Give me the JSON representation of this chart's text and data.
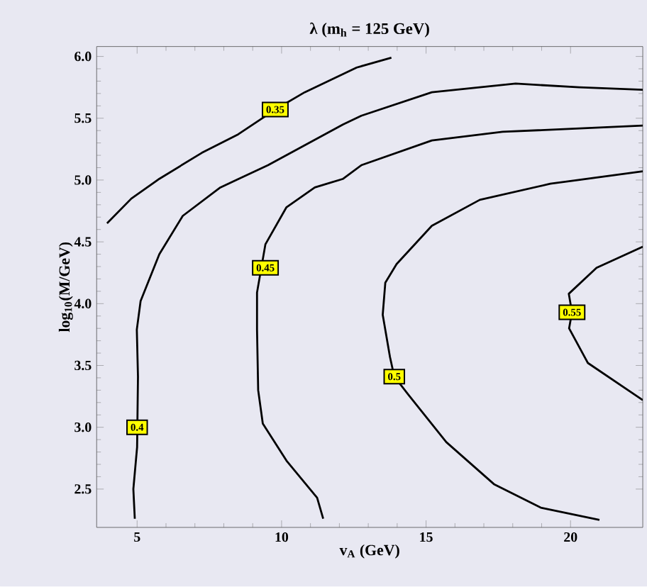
{
  "chart_data": {
    "type": "line",
    "title": "λ (m$_{h}$ = 125 GeV)",
    "xlabel": "v$_{A}$ (GeV)",
    "ylabel": "log$_{10}$(M/GeV)",
    "xlim": [
      3.6,
      22.5
    ],
    "ylim": [
      2.19,
      6.08
    ],
    "xticks": [
      5,
      10,
      15,
      20
    ],
    "yticks": [
      2.5,
      {
        "value": 3,
        "label": "3.0"
      },
      3.5,
      {
        "value": 4,
        "label": "4.0"
      },
      4.5,
      {
        "value": 5,
        "label": "5.0"
      },
      5.5,
      {
        "value": 6,
        "label": "6.0"
      }
    ],
    "grid": false,
    "marker": "none",
    "line_style": "solid",
    "series": [
      {
        "color": "#000000",
        "x": [
          3.96,
          4.8,
          5.77,
          7.24,
          8.5,
          9.78,
          10.8,
          12.6,
          13.8
        ],
        "values": [
          4.65,
          4.85,
          5.01,
          5.22,
          5.37,
          5.57,
          5.71,
          5.91,
          5.99
        ]
      },
      {
        "color": "#000000",
        "x": [
          4.92,
          4.87,
          5.0,
          5.03,
          4.99,
          5.12,
          5.77,
          6.58,
          7.88,
          9.53,
          12.13,
          12.76,
          15.2,
          18.1,
          20.3,
          22.5
        ],
        "values": [
          2.26,
          2.5,
          2.84,
          3.41,
          3.79,
          4.02,
          4.4,
          4.71,
          4.94,
          5.12,
          5.45,
          5.52,
          5.71,
          5.78,
          5.75,
          5.73
        ]
      },
      {
        "color": "#000000",
        "x": [
          11.44,
          11.23,
          10.17,
          9.35,
          9.19,
          9.15,
          9.15,
          9.44,
          10.17,
          11.15,
          12.13,
          12.76,
          15.2,
          17.65,
          22.5
        ],
        "values": [
          2.26,
          2.43,
          2.73,
          3.03,
          3.3,
          3.79,
          4.09,
          4.48,
          4.78,
          4.94,
          5.01,
          5.12,
          5.32,
          5.39,
          5.44
        ]
      },
      {
        "color": "#000000",
        "x": [
          21.0,
          18.97,
          17.35,
          15.7,
          14.4,
          13.9,
          13.75,
          13.5,
          13.59,
          13.98,
          15.2,
          16.86,
          19.3,
          22.5
        ],
        "values": [
          2.25,
          2.35,
          2.54,
          2.88,
          3.26,
          3.41,
          3.57,
          3.91,
          4.17,
          4.32,
          4.63,
          4.84,
          4.97,
          5.07
        ]
      },
      {
        "color": "#000000",
        "x": [
          22.5,
          20.6,
          19.95,
          20.05,
          19.94,
          20.9,
          22.5
        ],
        "values": [
          3.22,
          3.52,
          3.8,
          3.93,
          4.08,
          4.29,
          4.46
        ]
      }
    ],
    "annotations": [
      {
        "text": "0.35",
        "x": 9.78,
        "y": 5.57
      },
      {
        "text": "0.4",
        "x": 5.0,
        "y": 3.0
      },
      {
        "text": "0.45",
        "x": 9.44,
        "y": 4.29
      },
      {
        "text": "0.5",
        "x": 13.9,
        "y": 3.41
      },
      {
        "text": "0.55",
        "x": 20.05,
        "y": 3.93
      }
    ]
  }
}
